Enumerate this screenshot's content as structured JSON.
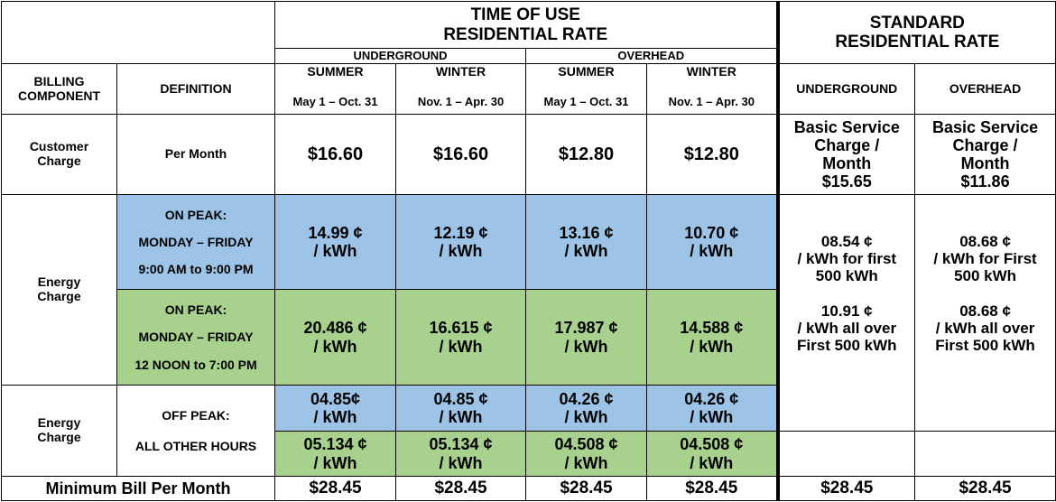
{
  "header": {
    "tou_title_line1": "TIME OF USE",
    "tou_title_line2": "RESIDENTIAL RATE",
    "std_title_line1": "STANDARD",
    "std_title_line2": "RESIDENTIAL RATE",
    "underground": "UNDERGROUND",
    "overhead": "OVERHEAD",
    "billing_component_line1": "BILLING",
    "billing_component_line2": "COMPONENT",
    "definition": "DEFINITION",
    "summer": "SUMMER",
    "winter": "WINTER",
    "summer_dates": "May 1 – Oct. 31",
    "winter_dates": "Nov. 1 – Apr. 30",
    "std_underground": "UNDERGROUND",
    "std_overhead": "OVERHEAD"
  },
  "customer_charge": {
    "label_line1": "Customer",
    "label_line2": "Charge",
    "definition": "Per Month",
    "values": [
      "$16.60",
      "$16.60",
      "$12.80",
      "$12.80"
    ],
    "std_underground_lines": [
      "Basic Service",
      "Charge /",
      "Month",
      "$15.65"
    ],
    "std_overhead_lines": [
      "Basic Service",
      "Charge /",
      "Month",
      "$11.86"
    ]
  },
  "energy_charge_peak": {
    "label_line1": "Energy",
    "label_line2": "Charge",
    "blue_def_lines": [
      "ON PEAK:",
      "MONDAY – FRIDAY",
      "9:00 AM to 9:00 PM"
    ],
    "green_def_lines": [
      "ON PEAK:",
      "MONDAY – FRIDAY",
      "12 NOON to 7:00 PM"
    ],
    "blue_rates": [
      {
        "value": "14.99 ¢",
        "unit": "/ kWh"
      },
      {
        "value": "12.19 ¢",
        "unit": "/ kWh"
      },
      {
        "value": "13.16 ¢",
        "unit": "/ kWh"
      },
      {
        "value": "10.70 ¢",
        "unit": "/ kWh"
      }
    ],
    "green_rates": [
      {
        "value": "20.486 ¢",
        "unit": "/ kWh"
      },
      {
        "value": "16.615 ¢",
        "unit": "/ kWh"
      },
      {
        "value": "17.987 ¢",
        "unit": "/ kWh"
      },
      {
        "value": "14.588 ¢",
        "unit": "/ kWh"
      }
    ],
    "std_underground_lines": [
      "08.54 ¢",
      "/ kWh for first",
      "500 kWh",
      "",
      "10.91 ¢",
      "/ kWh all over",
      "First 500 kWh"
    ],
    "std_overhead_lines": [
      "08.68 ¢",
      "/ kWh for First",
      "500 kWh",
      "",
      "08.68 ¢",
      "/ kWh all over",
      "First 500 kWh"
    ]
  },
  "energy_charge_offpeak": {
    "label_line1": "Energy",
    "label_line2": "Charge",
    "def_line1": "OFF PEAK:",
    "def_line2": "ALL OTHER HOURS",
    "blue_rates": [
      {
        "value": "04.85¢",
        "unit": "/ kWh"
      },
      {
        "value": "04.85 ¢",
        "unit": "/ kWh"
      },
      {
        "value": "04.26 ¢",
        "unit": "/ kWh"
      },
      {
        "value": "04.26 ¢",
        "unit": "/ kWh"
      }
    ],
    "green_rates": [
      {
        "value": "05.134 ¢",
        "unit": "/ kWh"
      },
      {
        "value": "05.134 ¢",
        "unit": "/ kWh"
      },
      {
        "value": "04.508 ¢",
        "unit": "/ kWh"
      },
      {
        "value": "04.508 ¢",
        "unit": "/ kWh"
      }
    ]
  },
  "minimum_bill": {
    "label": "Minimum Bill Per Month",
    "values": [
      "$28.45",
      "$28.45",
      "$28.45",
      "$28.45",
      "$28.45",
      "$28.45"
    ]
  },
  "colors": {
    "blue_fill": "#9dc3e6",
    "green_fill": "#a9d18e"
  }
}
